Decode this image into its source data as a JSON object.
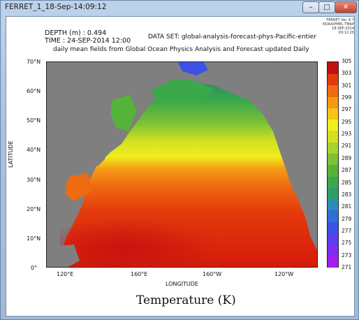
{
  "window": {
    "title": "FERRET_1_18-Sep-14:09:12",
    "min_label": "–",
    "max_label": "□",
    "close_label": "✕"
  },
  "badge": {
    "line1": "FERRET Ver. 6.7",
    "line2": "NOAA/PMEL TMAP",
    "line3": "18-SEP-2014 09:12:20"
  },
  "header": {
    "depth": "DEPTH (m) : 0.494",
    "time": "TIME : 24-SEP-2014 12:00",
    "dataset": "DATA SET: global-analysis-forecast-phys-Pacific-entier",
    "subtitle": "daily mean fields from Global Ocean Physics Analysis and Forecast updated Daily"
  },
  "chart_data": {
    "type": "heatmap",
    "title": "Temperature (K)",
    "xlabel": "LONGITUDE",
    "ylabel": "LATITUDE",
    "x_ticks": [
      "120°E",
      "160°E",
      "160°W",
      "120°W"
    ],
    "y_ticks": [
      "0°",
      "10°N",
      "20°N",
      "30°N",
      "40°N",
      "50°N",
      "60°N",
      "70°N"
    ],
    "colorbar": {
      "levels": [
        271,
        273,
        275,
        277,
        279,
        281,
        283,
        285,
        287,
        289,
        291,
        293,
        295,
        297,
        299,
        301,
        303,
        305
      ],
      "colors": [
        "#a020f0",
        "#7e2df2",
        "#5a3ef0",
        "#3c52e6",
        "#2f6fd8",
        "#2a8fb8",
        "#2f9e6a",
        "#3ba84a",
        "#55b33a",
        "#7cc234",
        "#a8d22c",
        "#d5e022",
        "#f1ee1c",
        "#f7c418",
        "#f59a14",
        "#ef6a10",
        "#e43a0c",
        "#c51010"
      ]
    },
    "land_color": "#7f7f7f"
  }
}
